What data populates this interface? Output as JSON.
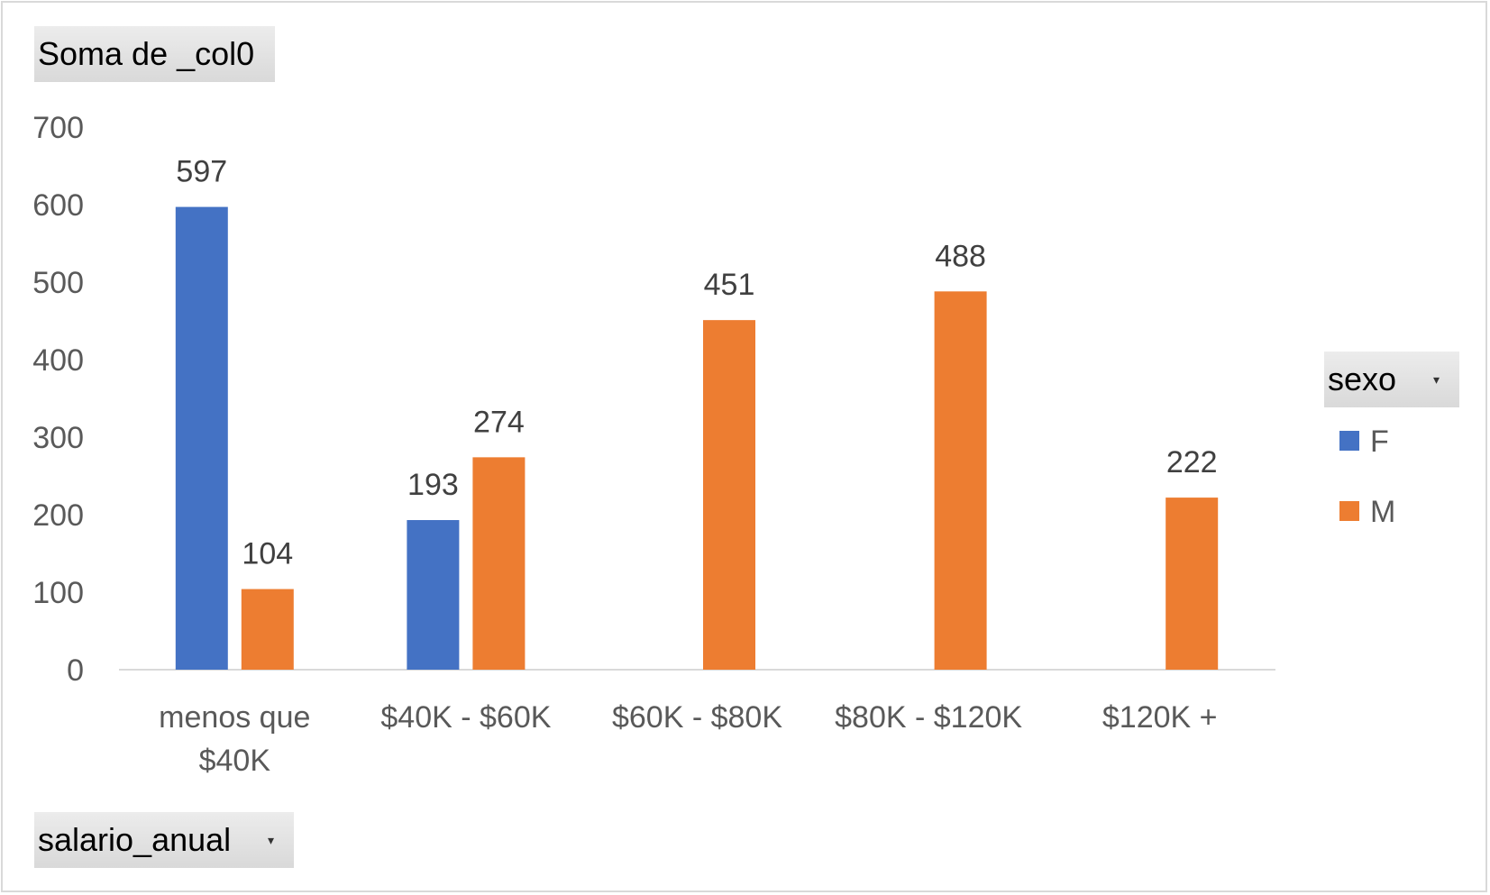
{
  "pivot": {
    "value_field": "Soma de _col0",
    "row_field": "salario_anual",
    "legend_field": "sexo",
    "dropdown_glyph": "▾"
  },
  "chart_data": {
    "type": "bar",
    "categories": [
      [
        "menos que",
        "$40K"
      ],
      [
        "$40K - $60K"
      ],
      [
        "$60K - $80K"
      ],
      [
        "$80K - $120K"
      ],
      [
        "$120K +"
      ]
    ],
    "series": [
      {
        "name": "F",
        "color": "#4472c4",
        "values": [
          597,
          193,
          null,
          null,
          null
        ]
      },
      {
        "name": "M",
        "color": "#ed7d31",
        "values": [
          104,
          274,
          451,
          488,
          222
        ]
      }
    ],
    "yticks": [
      0,
      100,
      200,
      300,
      400,
      500,
      600,
      700
    ],
    "ylim": [
      0,
      700
    ],
    "grid": false,
    "legend_position": "right"
  }
}
